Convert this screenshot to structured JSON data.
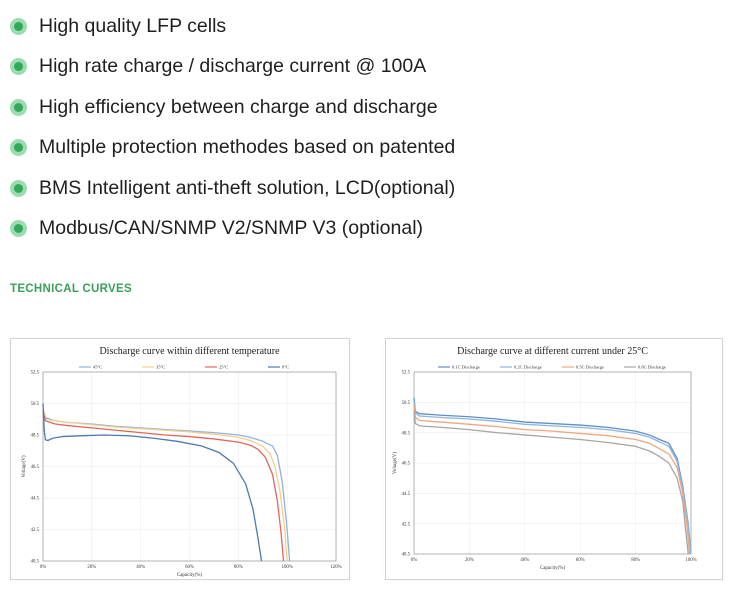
{
  "features": [
    "High quality LFP cells",
    "High rate charge / discharge current @ 100A",
    "High efficiency between charge and discharge",
    "Multiple protection methodes based on patented",
    "BMS Intelligent anti-theft solution, LCD(optional)",
    "Modbus/CAN/SNMP V2/SNMP V3 (optional)"
  ],
  "section_title": "TECHNICAL CURVES",
  "colors": {
    "accent": "#2fa95a",
    "bullet_ring": "#9ddbb0",
    "title_green": "#3aa05a"
  },
  "chart_data": [
    {
      "type": "line",
      "title": "Discharge curve within different temperature",
      "xlabel": "Capacity(%)",
      "ylabel": "Voltage(V)",
      "xlim": [
        0,
        120
      ],
      "ylim": [
        40.5,
        52.5
      ],
      "xticks": [
        0,
        20,
        40,
        60,
        80,
        100,
        120
      ],
      "xtick_labels": [
        "0%",
        "20%",
        "40%",
        "60%",
        "80%",
        "100%",
        "120%"
      ],
      "yticks": [
        40.5,
        42.5,
        44.5,
        46.5,
        48.5,
        50.5,
        52.5
      ],
      "ytick_labels": [
        "40.5",
        "42.5",
        "44.5",
        "46.5",
        "48.5",
        "50.5",
        "52.5"
      ],
      "grid": true,
      "legend_position": "top",
      "series": [
        {
          "name": "45°C",
          "color": "#8fb3dd",
          "x": [
            0,
            1,
            5,
            10,
            20,
            30,
            40,
            50,
            60,
            70,
            80,
            85,
            90,
            94,
            96,
            98,
            100,
            101
          ],
          "y": [
            50.2,
            49.6,
            49.4,
            49.3,
            49.2,
            49.05,
            48.95,
            48.85,
            48.75,
            48.65,
            48.5,
            48.35,
            48.1,
            47.8,
            47.2,
            45.5,
            42.5,
            40.5
          ]
        },
        {
          "name": "35°C",
          "color": "#f3d08c",
          "x": [
            0,
            1,
            5,
            10,
            20,
            30,
            40,
            50,
            60,
            70,
            80,
            85,
            90,
            93,
            95,
            97,
            99,
            100
          ],
          "y": [
            50.2,
            49.5,
            49.4,
            49.3,
            49.15,
            49.0,
            48.9,
            48.8,
            48.7,
            48.55,
            48.35,
            48.15,
            47.8,
            47.3,
            46.5,
            45.0,
            42.5,
            40.5
          ]
        },
        {
          "name": "25°C",
          "color": "#e0665e",
          "x": [
            0,
            1,
            5,
            10,
            20,
            30,
            40,
            50,
            60,
            70,
            80,
            85,
            88,
            91,
            94,
            96,
            97.5,
            98.5
          ],
          "y": [
            50.0,
            49.4,
            49.2,
            49.1,
            48.95,
            48.8,
            48.65,
            48.5,
            48.4,
            48.25,
            48.05,
            47.85,
            47.6,
            47.1,
            46.0,
            44.3,
            42.3,
            40.5
          ]
        },
        {
          "name": "0°C",
          "color": "#4d78b0",
          "x": [
            0,
            0.5,
            1,
            2,
            4,
            8,
            15,
            25,
            35,
            45,
            55,
            65,
            72,
            78,
            83,
            86,
            88,
            89.5
          ],
          "y": [
            50.5,
            48.8,
            48.2,
            48.15,
            48.3,
            48.4,
            48.45,
            48.5,
            48.45,
            48.3,
            48.1,
            47.8,
            47.4,
            46.7,
            45.4,
            43.8,
            42.0,
            40.5
          ]
        }
      ]
    },
    {
      "type": "line",
      "title": "Discharge curve at different current under 25°C",
      "xlabel": "Capacity(%)",
      "ylabel": "Voltage(V)",
      "xlim": [
        0,
        100
      ],
      "ylim": [
        40.5,
        52.5
      ],
      "xticks": [
        0,
        20,
        40,
        60,
        80,
        100
      ],
      "xtick_labels": [
        "0%",
        "20%",
        "40%",
        "60%",
        "80%",
        "100%"
      ],
      "yticks": [
        40.5,
        42.5,
        44.5,
        46.5,
        48.5,
        50.5,
        52.5
      ],
      "ytick_labels": [
        "40.5",
        "42.5",
        "44.5",
        "46.5",
        "48.5",
        "50.5",
        "52.5"
      ],
      "grid": true,
      "legend_position": "top",
      "series": [
        {
          "name": "0.1C Discharge",
          "color": "#5f8fc8",
          "x": [
            0,
            0.5,
            2,
            10,
            20,
            30,
            40,
            50,
            60,
            70,
            80,
            85,
            88,
            92,
            95,
            97,
            99,
            100
          ],
          "y": [
            50.8,
            49.9,
            49.75,
            49.65,
            49.55,
            49.4,
            49.2,
            49.1,
            49.0,
            48.85,
            48.6,
            48.35,
            48.1,
            47.8,
            46.8,
            45.0,
            42.5,
            40.5
          ]
        },
        {
          "name": "0.2C Discharge",
          "color": "#8eb4de",
          "x": [
            0,
            0.5,
            2,
            10,
            20,
            30,
            40,
            50,
            60,
            70,
            80,
            85,
            88,
            92,
            95,
            97,
            99,
            100
          ],
          "y": [
            50.6,
            49.8,
            49.6,
            49.5,
            49.4,
            49.25,
            49.05,
            48.95,
            48.85,
            48.7,
            48.45,
            48.2,
            47.95,
            47.6,
            46.6,
            44.8,
            42.4,
            40.5
          ]
        },
        {
          "name": "0.5C Discharge",
          "color": "#f0a77c",
          "x": [
            0,
            0.5,
            2,
            10,
            20,
            30,
            40,
            50,
            60,
            70,
            80,
            85,
            88,
            92,
            95,
            97,
            98.5,
            99.5
          ],
          "y": [
            50.3,
            49.5,
            49.3,
            49.2,
            49.05,
            48.9,
            48.7,
            48.6,
            48.45,
            48.3,
            48.05,
            47.8,
            47.5,
            47.1,
            46.2,
            44.5,
            42.4,
            40.5
          ]
        },
        {
          "name": "0.8C Discharge",
          "color": "#a6a6a6",
          "x": [
            0,
            0.5,
            2,
            10,
            20,
            30,
            40,
            50,
            60,
            70,
            80,
            85,
            88,
            92,
            95,
            97,
            98,
            99
          ],
          "y": [
            49.9,
            49.1,
            48.95,
            48.85,
            48.7,
            48.5,
            48.35,
            48.2,
            48.05,
            47.85,
            47.6,
            47.3,
            47.0,
            46.5,
            45.5,
            44.0,
            42.2,
            40.5
          ]
        }
      ]
    }
  ]
}
